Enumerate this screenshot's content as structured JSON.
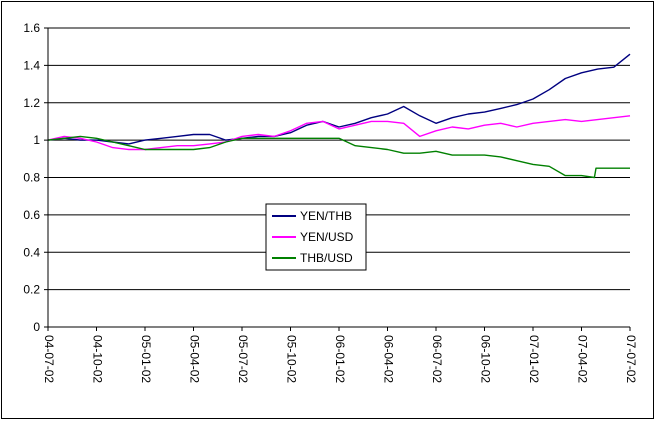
{
  "chart_data": {
    "type": "line",
    "title": "",
    "xlabel": "",
    "ylabel": "",
    "ylim": [
      0,
      1.6
    ],
    "yticks": [
      "0",
      "0.2",
      "0.4",
      "0.6",
      "0.8",
      "1",
      "1.2",
      "1.4",
      "1.6"
    ],
    "ytick_values": [
      0,
      0.2,
      0.4,
      0.6,
      0.8,
      1.0,
      1.2,
      1.4,
      1.6
    ],
    "xticks": [
      "04-07-02",
      "04-10-02",
      "05-01-02",
      "05-04-02",
      "05-07-02",
      "05-10-02",
      "06-01-02",
      "06-04-02",
      "06-07-02",
      "06-10-02",
      "07-01-02",
      "07-04-02",
      "07-07-02"
    ],
    "x_months": [
      0,
      3,
      6,
      9,
      12,
      15,
      18,
      21,
      24,
      27,
      30,
      33,
      36
    ],
    "grid": true,
    "legend_position": "center-left",
    "series": [
      {
        "name": "YEN/THB",
        "color": "#000080",
        "x": [
          0,
          1,
          2,
          3,
          4,
          5,
          6,
          7,
          8,
          9,
          10,
          11,
          12,
          13,
          14,
          15,
          16,
          17,
          18,
          19,
          20,
          21,
          22,
          23,
          24,
          25,
          26,
          27,
          28,
          29,
          30,
          31,
          32,
          33,
          34,
          35,
          36
        ],
        "values": [
          1.0,
          1.01,
          1.0,
          1.0,
          0.99,
          0.98,
          1.0,
          1.01,
          1.02,
          1.03,
          1.03,
          1.0,
          1.01,
          1.02,
          1.02,
          1.04,
          1.08,
          1.1,
          1.07,
          1.09,
          1.12,
          1.14,
          1.18,
          1.13,
          1.09,
          1.12,
          1.14,
          1.15,
          1.17,
          1.19,
          1.22,
          1.27,
          1.33,
          1.36,
          1.38,
          1.39,
          1.46
        ]
      },
      {
        "name": "YEN/USD",
        "color": "#FF00FF",
        "x": [
          0,
          1,
          2,
          3,
          4,
          5,
          6,
          7,
          8,
          9,
          10,
          11,
          12,
          13,
          14,
          15,
          16,
          17,
          18,
          19,
          20,
          21,
          22,
          23,
          24,
          25,
          26,
          27,
          28,
          29,
          30,
          31,
          32,
          33,
          34,
          35,
          36
        ],
        "values": [
          1.0,
          1.02,
          1.01,
          0.99,
          0.96,
          0.95,
          0.95,
          0.96,
          0.97,
          0.97,
          0.98,
          0.99,
          1.02,
          1.03,
          1.02,
          1.05,
          1.09,
          1.1,
          1.06,
          1.08,
          1.1,
          1.1,
          1.09,
          1.02,
          1.05,
          1.07,
          1.06,
          1.08,
          1.09,
          1.07,
          1.09,
          1.1,
          1.11,
          1.1,
          1.11,
          1.12,
          1.13
        ]
      },
      {
        "name": "THB/USD",
        "color": "#008000",
        "x": [
          0,
          1,
          2,
          3,
          4,
          5,
          6,
          7,
          8,
          9,
          10,
          11,
          12,
          13,
          14,
          15,
          16,
          17,
          18,
          19,
          20,
          21,
          22,
          23,
          24,
          25,
          26,
          27,
          28,
          29,
          30,
          31,
          32,
          33,
          33.8,
          33.9,
          36
        ],
        "values": [
          1.0,
          1.01,
          1.02,
          1.01,
          0.99,
          0.97,
          0.95,
          0.95,
          0.95,
          0.95,
          0.96,
          0.99,
          1.01,
          1.01,
          1.01,
          1.01,
          1.01,
          1.01,
          1.01,
          0.97,
          0.96,
          0.95,
          0.93,
          0.93,
          0.94,
          0.92,
          0.92,
          0.92,
          0.91,
          0.89,
          0.87,
          0.86,
          0.81,
          0.81,
          0.8,
          0.85,
          0.85
        ]
      }
    ]
  }
}
